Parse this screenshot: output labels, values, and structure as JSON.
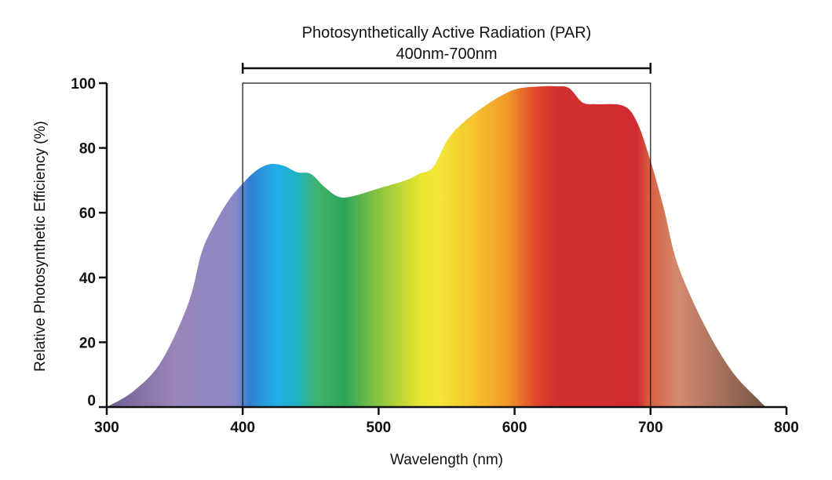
{
  "chart_data": {
    "type": "area",
    "title": "",
    "xlabel": "Wavelength (nm)",
    "ylabel": "Relative Photosynthetic Efficiency (%)",
    "xlim": [
      300,
      800
    ],
    "ylim": [
      0,
      100
    ],
    "x_ticks": [
      300,
      400,
      500,
      600,
      700,
      800
    ],
    "y_ticks": [
      0,
      20,
      40,
      60,
      80,
      100
    ],
    "grid": false,
    "series": [
      {
        "name": "Relative Photosynthetic Efficiency",
        "x": [
          300,
          320,
          340,
          360,
          370,
          380,
          390,
          400,
          410,
          420,
          430,
          440,
          450,
          460,
          470,
          480,
          500,
          520,
          530,
          540,
          550,
          560,
          580,
          600,
          620,
          630,
          640,
          650,
          660,
          680,
          690,
          700,
          710,
          720,
          740,
          760,
          780,
          785
        ],
        "values": [
          0,
          5,
          14,
          32,
          48,
          57,
          64,
          69,
          73,
          75,
          74.5,
          72.5,
          72,
          68,
          65,
          65,
          67.5,
          70,
          72,
          74,
          82,
          87,
          93.5,
          98,
          99,
          99,
          98.5,
          94,
          93.5,
          93,
          88,
          76,
          61,
          44,
          25,
          11,
          2,
          0
        ]
      }
    ],
    "annotations": {
      "par_title": "Photosynthetically Active Radiation (PAR)",
      "par_range": "400nm-700nm",
      "par_start": 400,
      "par_end": 700
    }
  }
}
